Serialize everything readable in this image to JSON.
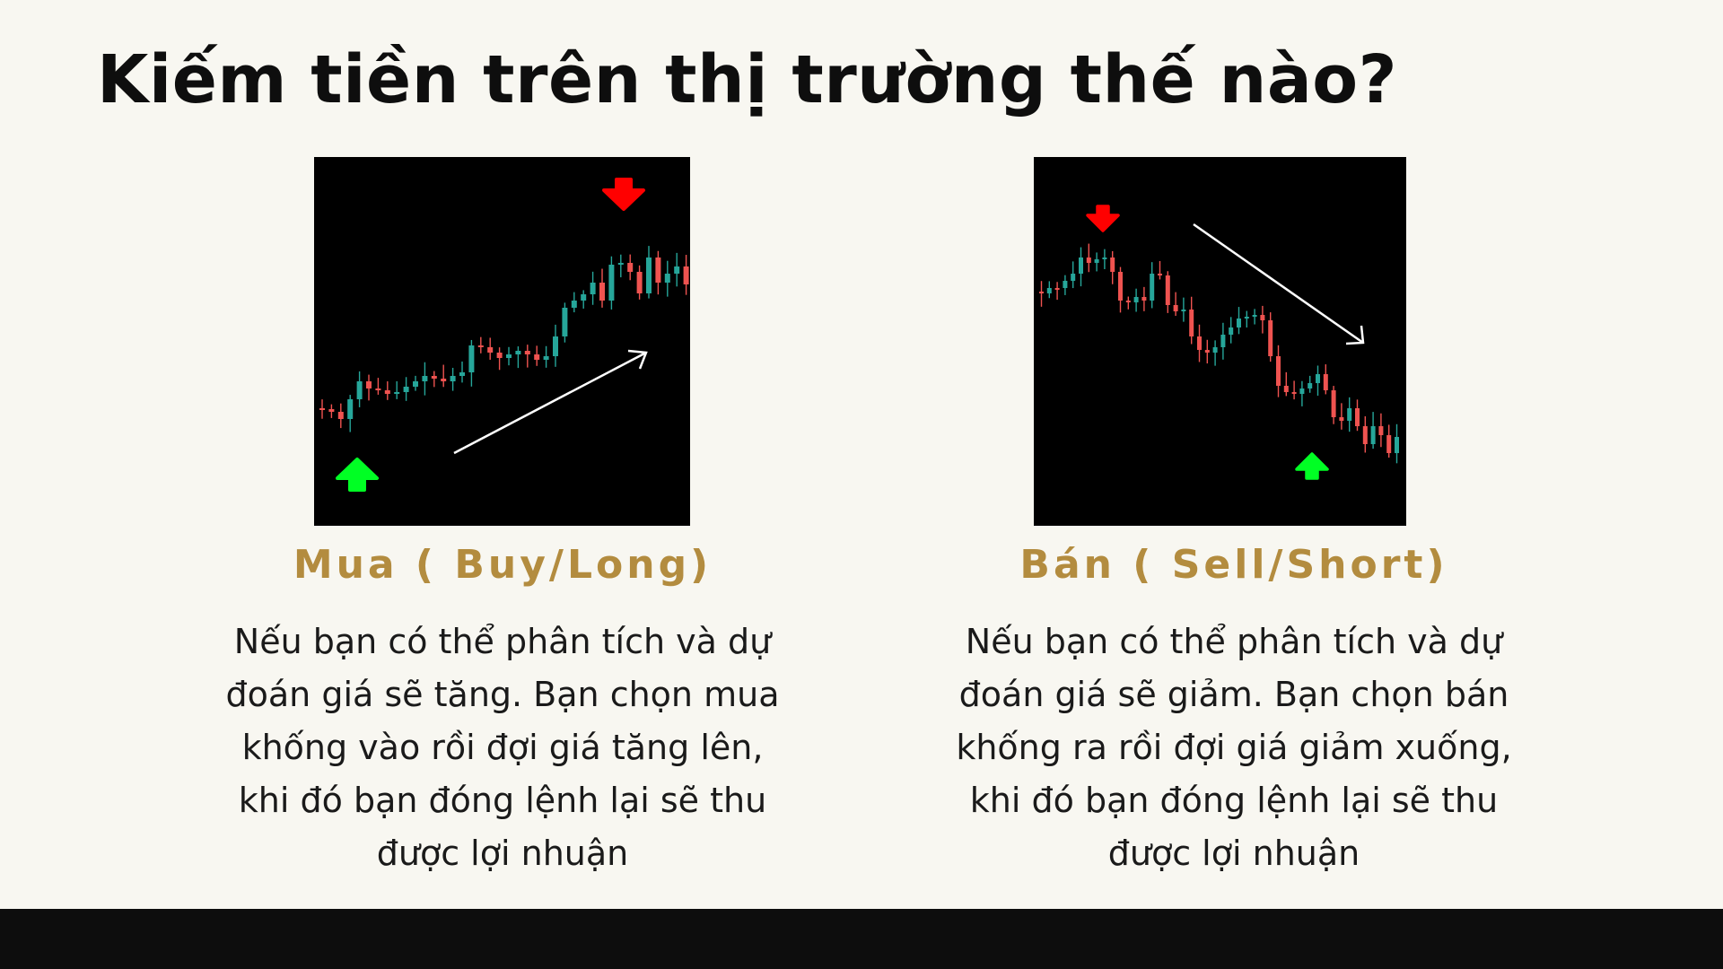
{
  "title": "Kiếm tiền trên thị trường thế nào?",
  "colors": {
    "background": "#f8f7f1",
    "caption": "#b38c3f",
    "bullish_candle": "#26a69a",
    "bearish_candle": "#ef5350",
    "buy_arrow": "#00ff24",
    "sell_arrow": "#ff0000",
    "trend_arrow": "#ffffff",
    "footer": "#0d0d0d"
  },
  "buy": {
    "caption": "Mua ( Buy/Long)",
    "lines": [
      "Nếu bạn có thể phân tích và dự",
      "đoán giá sẽ tăng. Bạn chọn mua",
      "khống vào rồi đợi giá tăng lên,",
      "khi đó bạn đóng lệnh lại sẽ thu",
      "được lợi nhuận"
    ],
    "icons": {
      "entry": "up-arrow-icon",
      "exit": "down-arrow-icon",
      "trend": "trend-up-arrow-icon"
    }
  },
  "sell": {
    "caption": "Bán ( Sell/Short)",
    "lines": [
      "Nếu bạn có thể phân tích và dự",
      "đoán giá sẽ giảm. Bạn chọn bán",
      "khống ra rồi đợi giá giảm xuống,",
      "khi đó bạn đóng lệnh lại sẽ thu",
      "được lợi nhuận"
    ],
    "icons": {
      "entry": "down-arrow-icon",
      "exit": "up-arrow-icon",
      "trend": "trend-down-arrow-icon"
    }
  }
}
